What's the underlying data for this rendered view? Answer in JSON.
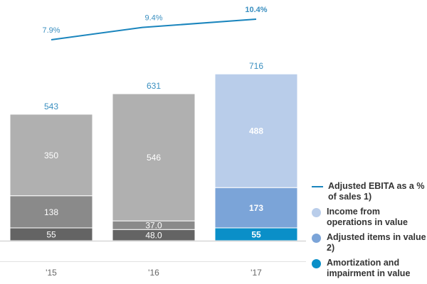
{
  "chart_data": {
    "type": "bar",
    "stacked": true,
    "categories": [
      "'15",
      "'16",
      "'17"
    ],
    "totals": [
      543,
      631,
      716
    ],
    "total_labels": [
      "543",
      "631",
      "716"
    ],
    "series": [
      {
        "name": "Amortization and impairment in value",
        "values": [
          55,
          48.0,
          55
        ],
        "labels": [
          "55",
          "48.0",
          "55"
        ],
        "colors": [
          "#646464",
          "#646464",
          "#0a8fc8"
        ]
      },
      {
        "name": "Adjusted items in value 2)",
        "values": [
          138,
          37.0,
          173
        ],
        "labels": [
          "138",
          "37.0",
          "173"
        ],
        "colors": [
          "#8a8a8a",
          "#8a8a8a",
          "#7ba4d8"
        ]
      },
      {
        "name": "Income from operations in value",
        "values": [
          350,
          546,
          488
        ],
        "labels": [
          "350",
          "546",
          "488"
        ],
        "colors": [
          "#b0b0b0",
          "#b0b0b0",
          "#b9cdea"
        ]
      }
    ],
    "line_series": {
      "name": "Adjusted EBITA as a % of sales 1)",
      "values": [
        7.9,
        9.4,
        10.4
      ],
      "labels": [
        "7.9%",
        "9.4%",
        "10.4%"
      ],
      "color": "#1a85bd"
    },
    "legend_position": "right",
    "grid": false
  },
  "legend": [
    {
      "label": "Adjusted EBITA as a % of sales 1)",
      "kind": "line",
      "color": "#1a85bd"
    },
    {
      "label": "Income from operations in value",
      "kind": "dot",
      "color": "#b9cdea"
    },
    {
      "label": "Adjusted items in value 2)",
      "kind": "dot",
      "color": "#7ba4d8"
    },
    {
      "label": "Amortization and impairment in value",
      "kind": "dot",
      "color": "#0a8fc8"
    }
  ]
}
